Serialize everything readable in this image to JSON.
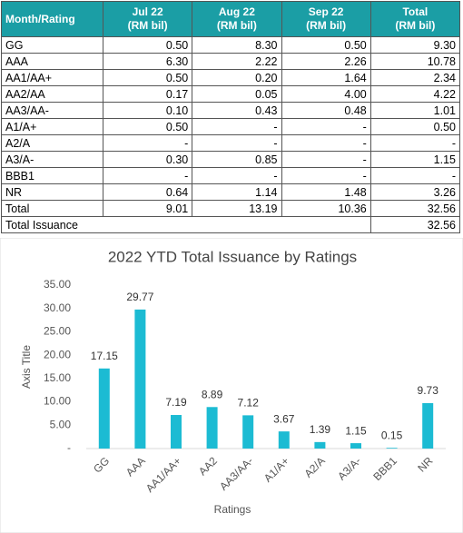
{
  "table": {
    "header": [
      [
        "Month/Rating"
      ],
      [
        "Jul 22",
        "(RM bil)"
      ],
      [
        "Aug 22",
        "(RM bil)"
      ],
      [
        "Sep 22",
        "(RM bil)"
      ],
      [
        "Total",
        "(RM bil)"
      ]
    ],
    "rows": [
      [
        "GG",
        "0.50",
        "8.30",
        "0.50",
        "9.30"
      ],
      [
        "AAA",
        "6.30",
        "2.22",
        "2.26",
        "10.78"
      ],
      [
        "AA1/AA+",
        "0.50",
        "0.20",
        "1.64",
        "2.34"
      ],
      [
        "AA2/AA",
        "0.17",
        "0.05",
        "4.00",
        "4.22"
      ],
      [
        "AA3/AA-",
        "0.10",
        "0.43",
        "0.48",
        "1.01"
      ],
      [
        "A1/A+",
        "0.50",
        "-",
        "-",
        "0.50"
      ],
      [
        "A2/A",
        "-",
        "-",
        "-",
        "-"
      ],
      [
        "A3/A-",
        "0.30",
        "0.85",
        "-",
        "1.15"
      ],
      [
        "BBB1",
        "-",
        "-",
        "-",
        "-"
      ],
      [
        "NR",
        "0.64",
        "1.14",
        "1.48",
        "3.26"
      ],
      [
        "Total",
        "9.01",
        "13.19",
        "10.36",
        "32.56"
      ]
    ],
    "footer": [
      "Total Issuance",
      "32.56"
    ]
  },
  "chart_data": {
    "type": "bar",
    "title": "2022 YTD Total Issuance by Ratings",
    "y_label": "Axis Title",
    "x_label": "Ratings",
    "categories": [
      "GG",
      "AAA",
      "AA1/AA+",
      "AA2",
      "AA3/AA-",
      "A1/A+",
      "A2/A",
      "A3/A-",
      "BBB1",
      "NR"
    ],
    "values": [
      17.15,
      29.77,
      7.19,
      8.89,
      7.12,
      3.67,
      1.39,
      1.15,
      0.15,
      9.73
    ],
    "color": "#1cbbd3",
    "ylim": [
      0,
      35
    ],
    "yticks": [
      {
        "value": 0,
        "label": "-"
      },
      {
        "value": 5,
        "label": "5.00"
      },
      {
        "value": 10,
        "label": "10.00"
      },
      {
        "value": 15,
        "label": "15.00"
      },
      {
        "value": 20,
        "label": "20.00"
      },
      {
        "value": 25,
        "label": "25.00"
      },
      {
        "value": 30,
        "label": "30.00"
      },
      {
        "value": 35,
        "label": "35.00"
      }
    ],
    "grid": false
  }
}
